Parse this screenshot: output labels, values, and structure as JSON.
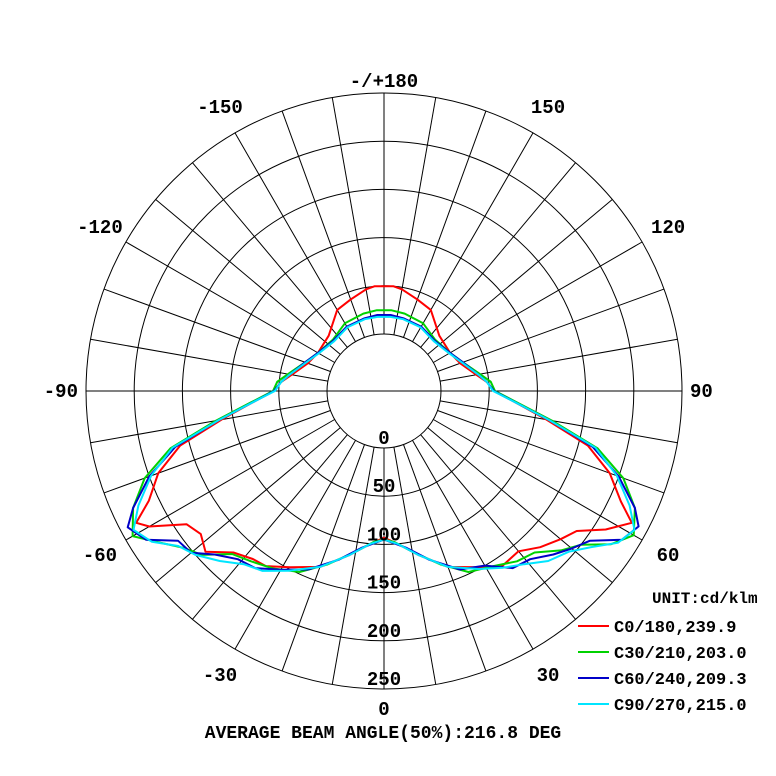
{
  "chart_data": {
    "type": "polar",
    "unit_label": "UNIT:cd/klm",
    "footer": "AVERAGE BEAM ANGLE(50%):216.8 DEG",
    "angle_labels": [
      {
        "deg": 0,
        "text": "-/+180"
      },
      {
        "deg": 30,
        "text": "150"
      },
      {
        "deg": -30,
        "text": "-150"
      },
      {
        "deg": 60,
        "text": "120"
      },
      {
        "deg": -60,
        "text": "-120"
      },
      {
        "deg": 90,
        "text": "90"
      },
      {
        "deg": -90,
        "text": "-90"
      },
      {
        "deg": 120,
        "text": "60"
      },
      {
        "deg": -120,
        "text": "-60"
      },
      {
        "deg": 150,
        "text": "30"
      },
      {
        "deg": -150,
        "text": "-30"
      },
      {
        "deg": 180,
        "text": "0"
      }
    ],
    "radial_labels": [
      "0",
      "50",
      "100",
      "150",
      "200",
      "250"
    ],
    "r_max": 250,
    "grid": true,
    "legend_position": "bottom-right",
    "series": [
      {
        "name": "C0/180,239.9",
        "color": "#ff0000",
        "points": [
          [
            -5,
            50
          ],
          [
            -10,
            48
          ],
          [
            -20,
            42
          ],
          [
            -30,
            38
          ],
          [
            -45,
            22
          ],
          [
            -60,
            20
          ],
          [
            -70,
            25
          ],
          [
            -80,
            38
          ],
          [
            -85,
            48
          ],
          [
            -90,
            55
          ],
          [
            -95,
            78
          ],
          [
            -100,
            112
          ],
          [
            -105,
            160
          ],
          [
            -110,
            190
          ],
          [
            -115,
            210
          ],
          [
            -118,
            232
          ],
          [
            -120,
            222
          ],
          [
            -124,
            188
          ],
          [
            -128,
            182
          ],
          [
            -132,
            190
          ],
          [
            -137,
            170
          ],
          [
            -142,
            162
          ],
          [
            -146,
            160
          ],
          [
            -152,
            148
          ],
          [
            -160,
            135
          ],
          [
            -168,
            115
          ],
          [
            -175,
            100
          ],
          [
            -180,
            93
          ],
          [
            175,
            100
          ],
          [
            168,
            115
          ],
          [
            160,
            135
          ],
          [
            152,
            148
          ],
          [
            146,
            160
          ],
          [
            140,
            158
          ],
          [
            135,
            170
          ],
          [
            130,
            180
          ],
          [
            126,
            188
          ],
          [
            122,
            212
          ],
          [
            118,
            232
          ],
          [
            115,
            212
          ],
          [
            110,
            190
          ],
          [
            105,
            160
          ],
          [
            100,
            112
          ],
          [
            95,
            78
          ],
          [
            90,
            55
          ],
          [
            85,
            48
          ],
          [
            80,
            38
          ],
          [
            70,
            25
          ],
          [
            60,
            20
          ],
          [
            45,
            22
          ],
          [
            30,
            38
          ],
          [
            20,
            42
          ],
          [
            10,
            48
          ],
          [
            5,
            50
          ]
        ]
      },
      {
        "name": "C30/210,203.0",
        "color": "#00d200",
        "points": [
          [
            -5,
            25
          ],
          [
            -15,
            24
          ],
          [
            -30,
            22
          ],
          [
            -45,
            16
          ],
          [
            -60,
            20
          ],
          [
            -70,
            28
          ],
          [
            -80,
            42
          ],
          [
            -85,
            52
          ],
          [
            -90,
            56
          ],
          [
            -95,
            80
          ],
          [
            -100,
            118
          ],
          [
            -105,
            170
          ],
          [
            -110,
            205
          ],
          [
            -115,
            228
          ],
          [
            -120,
            242
          ],
          [
            -124,
            222
          ],
          [
            -128,
            205
          ],
          [
            -132,
            195
          ],
          [
            -137,
            172
          ],
          [
            -142,
            165
          ],
          [
            -148,
            158
          ],
          [
            -155,
            148
          ],
          [
            -162,
            130
          ],
          [
            -170,
            110
          ],
          [
            -176,
            98
          ],
          [
            -180,
            95
          ],
          [
            176,
            98
          ],
          [
            170,
            110
          ],
          [
            162,
            130
          ],
          [
            155,
            148
          ],
          [
            148,
            155
          ],
          [
            142,
            165
          ],
          [
            137,
            170
          ],
          [
            132,
            188
          ],
          [
            128,
            200
          ],
          [
            124,
            225
          ],
          [
            120,
            240
          ],
          [
            115,
            228
          ],
          [
            110,
            205
          ],
          [
            105,
            170
          ],
          [
            100,
            118
          ],
          [
            95,
            80
          ],
          [
            90,
            56
          ],
          [
            85,
            52
          ],
          [
            80,
            42
          ],
          [
            70,
            28
          ],
          [
            60,
            20
          ],
          [
            45,
            16
          ],
          [
            30,
            22
          ],
          [
            15,
            24
          ],
          [
            5,
            25
          ]
        ]
      },
      {
        "name": "C60/240,209.3",
        "color": "#0000c8",
        "points": [
          [
            -5,
            20
          ],
          [
            -15,
            19
          ],
          [
            -30,
            18
          ],
          [
            -45,
            15
          ],
          [
            -60,
            20
          ],
          [
            -70,
            28
          ],
          [
            -80,
            40
          ],
          [
            -85,
            48
          ],
          [
            -90,
            55
          ],
          [
            -95,
            78
          ],
          [
            -100,
            115
          ],
          [
            -105,
            165
          ],
          [
            -110,
            200
          ],
          [
            -115,
            228
          ],
          [
            -118,
            242
          ],
          [
            -122,
            232
          ],
          [
            -126,
            205
          ],
          [
            -130,
            202
          ],
          [
            -134,
            185
          ],
          [
            -139,
            172
          ],
          [
            -144,
            168
          ],
          [
            -150,
            155
          ],
          [
            -157,
            142
          ],
          [
            -165,
            122
          ],
          [
            -172,
            105
          ],
          [
            -180,
            95
          ],
          [
            172,
            105
          ],
          [
            165,
            122
          ],
          [
            157,
            142
          ],
          [
            150,
            150
          ],
          [
            144,
            168
          ],
          [
            139,
            172
          ],
          [
            134,
            185
          ],
          [
            130,
            195
          ],
          [
            126,
            205
          ],
          [
            122,
            232
          ],
          [
            118,
            240
          ],
          [
            115,
            228
          ],
          [
            110,
            200
          ],
          [
            105,
            165
          ],
          [
            100,
            115
          ],
          [
            95,
            78
          ],
          [
            90,
            55
          ],
          [
            85,
            48
          ],
          [
            80,
            40
          ],
          [
            70,
            28
          ],
          [
            60,
            20
          ],
          [
            45,
            15
          ],
          [
            30,
            18
          ],
          [
            15,
            19
          ],
          [
            5,
            20
          ]
        ]
      },
      {
        "name": "C90/270,215.0",
        "color": "#00e5ff",
        "points": [
          [
            -5,
            18
          ],
          [
            -15,
            18
          ],
          [
            -30,
            17
          ],
          [
            -45,
            14
          ],
          [
            -60,
            19
          ],
          [
            -70,
            27
          ],
          [
            -80,
            40
          ],
          [
            -85,
            48
          ],
          [
            -90,
            54
          ],
          [
            -95,
            78
          ],
          [
            -100,
            115
          ],
          [
            -105,
            168
          ],
          [
            -110,
            198
          ],
          [
            -115,
            222
          ],
          [
            -119,
            238
          ],
          [
            -123,
            228
          ],
          [
            -127,
            208
          ],
          [
            -131,
            200
          ],
          [
            -136,
            186
          ],
          [
            -141,
            172
          ],
          [
            -146,
            166
          ],
          [
            -152,
            152
          ],
          [
            -160,
            135
          ],
          [
            -168,
            115
          ],
          [
            -175,
            100
          ],
          [
            -180,
            95
          ],
          [
            175,
            100
          ],
          [
            168,
            115
          ],
          [
            160,
            135
          ],
          [
            152,
            150
          ],
          [
            146,
            162
          ],
          [
            141,
            172
          ],
          [
            136,
            186
          ],
          [
            131,
            195
          ],
          [
            127,
            210
          ],
          [
            123,
            230
          ],
          [
            119,
            238
          ],
          [
            115,
            222
          ],
          [
            110,
            198
          ],
          [
            105,
            168
          ],
          [
            100,
            115
          ],
          [
            95,
            78
          ],
          [
            90,
            54
          ],
          [
            85,
            48
          ],
          [
            80,
            40
          ],
          [
            70,
            27
          ],
          [
            60,
            19
          ],
          [
            45,
            14
          ],
          [
            30,
            17
          ],
          [
            15,
            18
          ],
          [
            5,
            18
          ]
        ]
      }
    ]
  }
}
